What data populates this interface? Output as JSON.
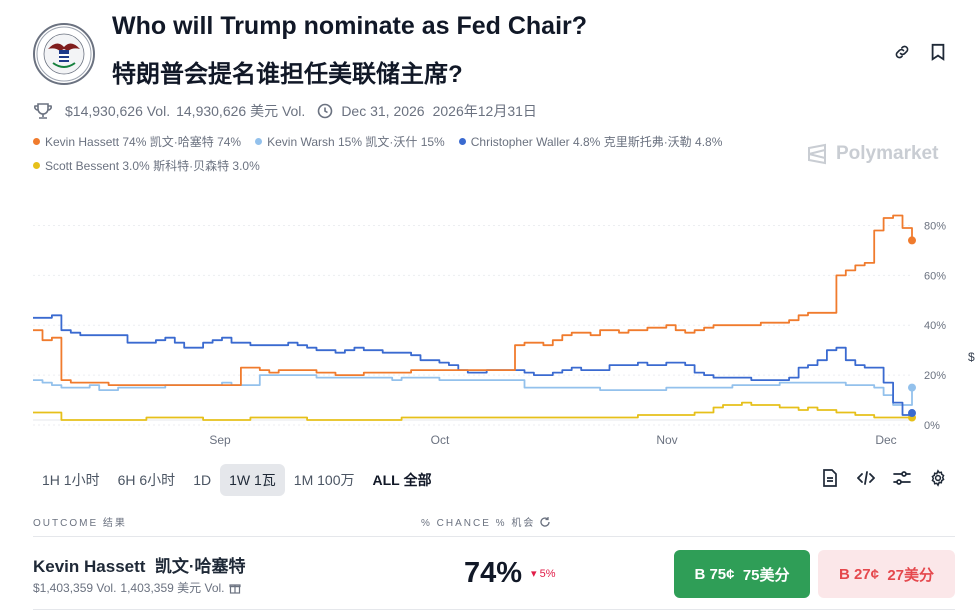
{
  "header": {
    "logo_name": "Federal Reserve seal",
    "title_en": "Who will Trump nominate as Fed Chair?",
    "title_zh": "特朗普会提名谁担任美联储主席?"
  },
  "meta": {
    "volume": "$14,930,626 Vol.",
    "volume_zh": "14,930,626 美元 Vol.",
    "end_date": "Dec 31, 2026",
    "end_date_zh": "2026年12月31日"
  },
  "legend": [
    {
      "label": "Kevin Hassett 74%",
      "label_zh": "凯文·哈塞特 74%",
      "color": "#f07b2d"
    },
    {
      "label": "Kevin Warsh 15%",
      "label_zh": "凯文·沃什 15%",
      "color": "#93c1ec"
    },
    {
      "label": "Christopher Waller 4.8%",
      "label_zh": "克里斯托弗·沃勒 4.8%",
      "color": "#3a6ad0"
    },
    {
      "label": "Scott Bessent 3.0%",
      "label_zh": "斯科特·贝森特 3.0%",
      "color": "#e6c01a"
    }
  ],
  "brand": "Polymarket",
  "chart_data": {
    "type": "line",
    "x_labels": [
      "Sep",
      "Oct",
      "Nov",
      "Dec"
    ],
    "y_ticks": [
      "0%",
      "20%",
      "40%",
      "60%",
      "80%"
    ],
    "ylim": [
      0,
      85
    ],
    "series": [
      {
        "name": "Kevin Hassett",
        "color": "#f07b2d",
        "values": [
          38,
          34,
          35,
          18,
          17,
          17,
          17,
          17,
          16,
          16,
          16,
          16,
          16,
          16,
          16,
          16,
          16,
          16,
          16,
          16,
          16,
          16,
          23,
          23,
          22,
          21,
          22,
          22,
          22,
          22,
          21,
          21,
          20,
          20,
          20,
          21,
          21,
          21,
          21,
          21,
          22,
          22,
          22,
          22,
          22,
          22,
          22,
          22,
          22,
          22,
          22,
          32,
          33,
          33,
          32,
          34,
          36,
          37,
          37,
          36,
          38,
          38,
          37,
          38,
          38,
          39,
          39,
          40,
          38,
          37,
          38,
          39,
          40,
          40,
          40,
          40,
          40,
          41,
          41,
          41,
          42,
          44,
          45,
          45,
          45,
          60,
          62,
          64,
          65,
          78,
          83,
          84,
          79,
          74
        ]
      },
      {
        "name": "Kevin Warsh",
        "color": "#93c1ec",
        "values": [
          18,
          17,
          16,
          15,
          15,
          15,
          16,
          14,
          14,
          15,
          15,
          15,
          15,
          15,
          16,
          16,
          16,
          16,
          16,
          16,
          17,
          16,
          16,
          16,
          20,
          20,
          20,
          20,
          20,
          20,
          19,
          19,
          19,
          19,
          19,
          19,
          19,
          19,
          18,
          19,
          19,
          19,
          19,
          18,
          18,
          18,
          18,
          18,
          18,
          18,
          18,
          18,
          15,
          15,
          15,
          15,
          15,
          15,
          15,
          15,
          14,
          14,
          14,
          14,
          14,
          14,
          14,
          15,
          15,
          15,
          15,
          15,
          15,
          15,
          16,
          16,
          16,
          16,
          16,
          17,
          17,
          17,
          17,
          17,
          17,
          17,
          16,
          16,
          16,
          15,
          12,
          8,
          8,
          15
        ]
      },
      {
        "name": "Christopher Waller",
        "color": "#3a6ad0",
        "values": [
          43,
          43,
          44,
          38,
          37,
          36,
          36,
          36,
          36,
          36,
          33,
          33,
          33,
          34,
          35,
          33,
          31,
          31,
          33,
          34,
          35,
          33,
          33,
          32,
          32,
          32,
          32,
          33,
          32,
          31,
          30,
          30,
          29,
          30,
          31,
          30,
          30,
          29,
          29,
          29,
          28,
          26,
          26,
          25,
          24,
          22,
          21,
          21,
          22,
          22,
          22,
          22,
          21,
          20,
          20,
          21,
          22,
          23,
          22,
          22,
          22,
          24,
          24,
          24,
          25,
          24,
          24,
          25,
          25,
          24,
          21,
          20,
          19,
          19,
          19,
          19,
          18,
          18,
          18,
          18,
          19,
          23,
          24,
          26,
          30,
          31,
          26,
          24,
          23,
          23,
          17,
          9,
          4,
          4.8
        ]
      },
      {
        "name": "Scott Bessent",
        "color": "#e6c01a",
        "values": [
          5,
          5,
          5,
          2,
          2,
          2,
          2,
          2,
          2,
          2,
          2,
          2,
          3,
          3,
          3,
          3,
          3,
          3,
          2,
          2,
          2,
          2,
          2,
          3,
          3,
          3,
          3,
          3,
          3,
          2,
          2,
          2,
          2,
          2,
          2,
          2,
          2,
          2,
          2,
          3,
          3,
          3,
          3,
          3,
          3,
          3,
          3,
          3,
          3,
          3,
          3,
          3,
          3,
          3,
          3,
          3,
          3,
          3,
          3,
          3,
          3,
          3,
          3,
          3,
          4,
          4,
          4,
          4,
          4,
          4,
          5,
          5,
          7,
          8,
          8,
          9,
          8,
          8,
          8,
          7,
          7,
          6,
          7,
          6,
          6,
          5,
          5,
          4,
          4,
          3,
          3,
          3,
          3,
          3
        ]
      }
    ]
  },
  "ranges": [
    {
      "label": "1H",
      "label_zh": "1小时"
    },
    {
      "label": "6H",
      "label_zh": "6小时"
    },
    {
      "label": "1D",
      "label_zh": ""
    },
    {
      "label": "1W",
      "label_zh": "1瓦"
    },
    {
      "label": "1M",
      "label_zh": "100万"
    },
    {
      "label": "ALL",
      "label_zh": "全部"
    }
  ],
  "table": {
    "outcome_header": "OUTCOME 结果",
    "chance_header": "% CHANCE % 机会"
  },
  "outcome": {
    "name": "Kevin Hassett",
    "name_zh": "凯文·哈塞特",
    "volume": "$1,403,359 Vol.",
    "volume_zh": "1,403,359 美元 Vol.",
    "chance": "74%",
    "change": "5%",
    "buy_yes": "B 75¢",
    "buy_yes_zh": "75美分",
    "buy_no": "B 27¢",
    "buy_no_zh": "27美分"
  },
  "edge_text": "$"
}
